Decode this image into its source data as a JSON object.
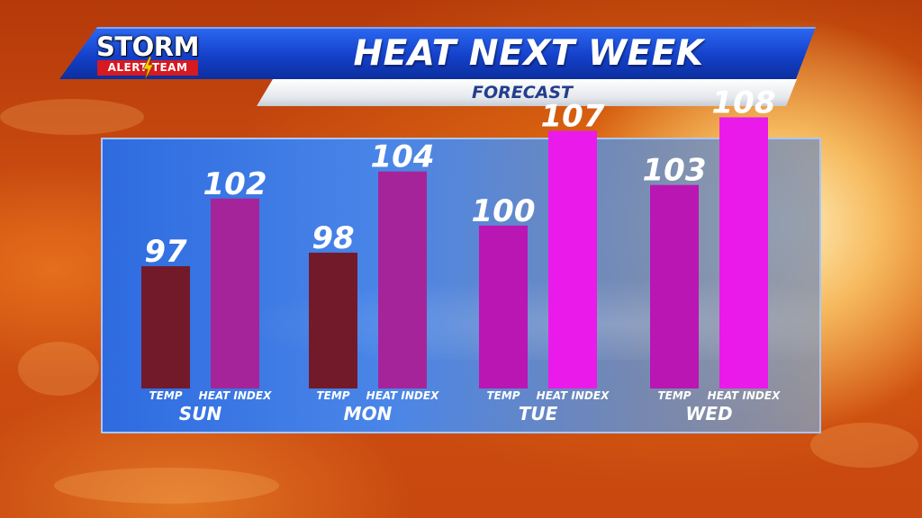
{
  "header": {
    "title": "HEAT NEXT WEEK",
    "subtitle": "FORECAST",
    "logo": {
      "line1": "STORM",
      "line2": "ALERT TEAM"
    }
  },
  "colors": {
    "title_bar": "#1440c9",
    "logo_red": "#d71920",
    "bolt": "#ffcc00"
  },
  "chart_data": {
    "type": "bar",
    "categories": [
      "SUN",
      "MON",
      "TUE",
      "WED"
    ],
    "series": [
      {
        "name": "TEMP",
        "values": [
          97,
          98,
          100,
          103
        ],
        "colors": [
          "#731a2a",
          "#731a2a",
          "#b916b4",
          "#b916b4"
        ]
      },
      {
        "name": "HEAT INDEX",
        "values": [
          102,
          104,
          107,
          108
        ],
        "colors": [
          "#a6249a",
          "#a6249a",
          "#ea1aea",
          "#ea1aea"
        ]
      }
    ],
    "title": "HEAT NEXT WEEK",
    "subtitle": "FORECAST",
    "grid": false,
    "legend": "none"
  }
}
